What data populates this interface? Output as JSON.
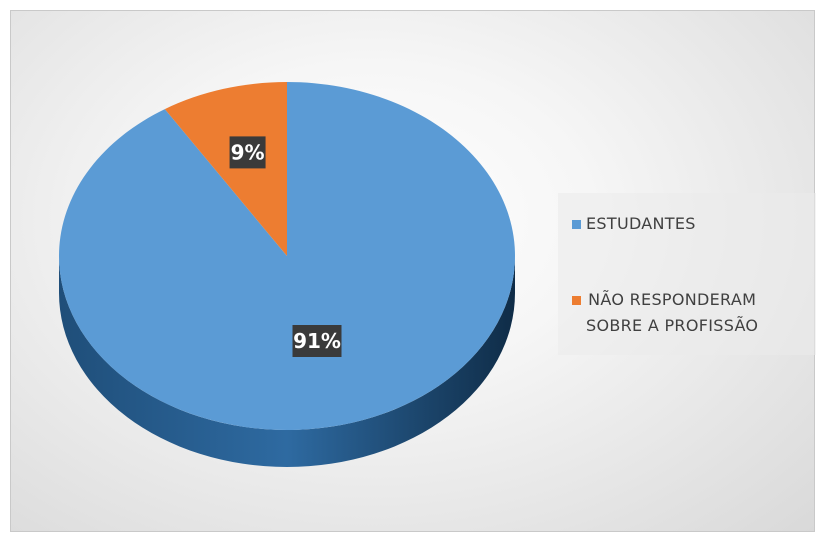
{
  "chart_data": {
    "type": "pie",
    "style": "3d",
    "categories": [
      "ESTUDANTES",
      "NÃO RESPONDERAM SOBRE A PROFISSÃO"
    ],
    "values": [
      91,
      9
    ],
    "data_labels": [
      "91%",
      "9%"
    ],
    "colors": [
      "#5b9bd5",
      "#ed7d31"
    ],
    "legend_position": "right",
    "legend": [
      {
        "label": "ESTUDANTES",
        "color": "#5b9bd5"
      },
      {
        "label": "NÃO RESPONDERAM\nSOBRE A PROFISSÃO",
        "color": "#ed7d31"
      }
    ]
  }
}
